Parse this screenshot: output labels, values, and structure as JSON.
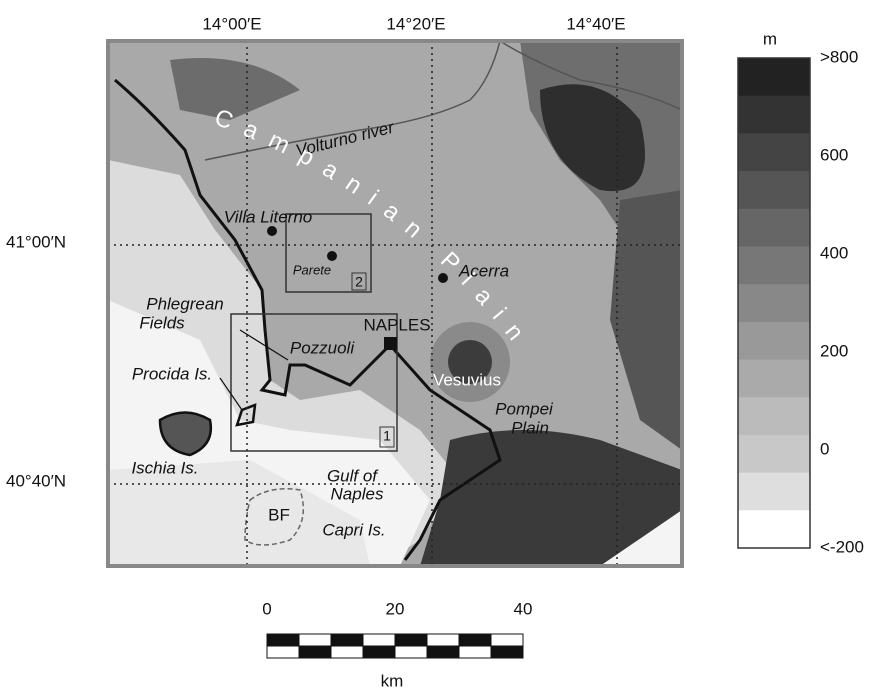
{
  "map": {
    "longitude_labels": [
      "14°00′E",
      "14°20′E",
      "14°40′E"
    ],
    "latitude_labels": [
      "41°00′N",
      "40°40′N"
    ],
    "place_labels": [
      "Volturno river",
      "Campanian Plain",
      "Villa Literno",
      "Parete",
      "2",
      "Acerra",
      "Phlegrean",
      "Fields",
      "NAPLES",
      "Pozzuoli",
      "Procida Is.",
      "Vesuvius",
      "Pompei",
      "Plain",
      "1",
      "Ischia Is.",
      "Gulf of",
      "Naples",
      "BF",
      "Capri Is."
    ]
  },
  "colorbar": {
    "unit": "m",
    "labels": [
      ">800",
      "600",
      "400",
      "200",
      "0",
      "<-200"
    ]
  },
  "scale_bar": {
    "labels": [
      "0",
      "20",
      "40"
    ],
    "unit": "km"
  }
}
